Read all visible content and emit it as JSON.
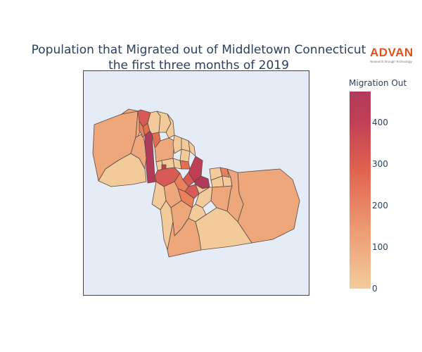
{
  "title": {
    "line1": "Population that Migrated out of Middletown Connecticut",
    "line2": "the first three months of 2019"
  },
  "logo": {
    "name": "ADVAN",
    "tagline": "Research through Technology",
    "color": "#e0521f"
  },
  "colorbar": {
    "title": "Migration Out",
    "ticks": [
      "0",
      "100",
      "200",
      "300",
      "400"
    ],
    "range": [
      0,
      475
    ],
    "colors": [
      "#f3cb9b",
      "#ed9b72",
      "#e0634f",
      "#c13f55",
      "#b03a5a"
    ]
  },
  "map": {
    "background": "#e5ecf6",
    "border": "#444444"
  }
}
